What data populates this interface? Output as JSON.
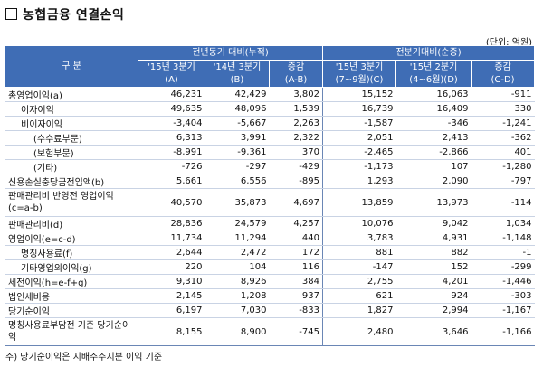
{
  "title": "농협금융 연결손익",
  "unit": "(단위: 억원)",
  "header": {
    "category": "구 분",
    "group_yoy": "전년동기 대비(누적)",
    "group_qoq": "전분기대비(순증)",
    "cols": [
      {
        "l1": "'15년 3분기",
        "l2": "(A)"
      },
      {
        "l1": "'14년 3분기",
        "l2": "(B)"
      },
      {
        "l1": "증감",
        "l2": "(A-B)"
      },
      {
        "l1": "'15년 3분기",
        "l2": "(7~9월)(C)"
      },
      {
        "l1": "'15년 2분기",
        "l2": "(4~6월)(D)"
      },
      {
        "l1": "증감",
        "l2": "(C-D)"
      }
    ]
  },
  "rows": [
    {
      "label": "총영업이익(a)",
      "indent": 0,
      "v": [
        "46,231",
        "42,429",
        "3,802",
        "15,152",
        "16,063",
        "-911"
      ]
    },
    {
      "label": "이자이익",
      "indent": 1,
      "v": [
        "49,635",
        "48,096",
        "1,539",
        "16,739",
        "16,409",
        "330"
      ]
    },
    {
      "label": "비이자이익",
      "indent": 1,
      "v": [
        "-3,404",
        "-5,667",
        "2,263",
        "-1,587",
        "-346",
        "-1,241"
      ]
    },
    {
      "label": "(수수료부문)",
      "indent": 2,
      "v": [
        "6,313",
        "3,991",
        "2,322",
        "2,051",
        "2,413",
        "-362"
      ]
    },
    {
      "label": "(보험부문)",
      "indent": 2,
      "v": [
        "-8,991",
        "-9,361",
        "370",
        "-2,465",
        "-2,866",
        "401"
      ]
    },
    {
      "label": "(기타)",
      "indent": 2,
      "v": [
        "-726",
        "-297",
        "-429",
        "-1,173",
        "107",
        "-1,280"
      ]
    },
    {
      "label": "신용손실충당금전입액(b)",
      "indent": 0,
      "v": [
        "5,661",
        "6,556",
        "-895",
        "1,293",
        "2,090",
        "-797"
      ]
    },
    {
      "label": "판매관리비 반영전 영업이익(c=a-b)",
      "indent": 0,
      "tall": true,
      "v": [
        "40,570",
        "35,873",
        "4,697",
        "13,859",
        "13,973",
        "-114"
      ]
    },
    {
      "label": "판매관리비(d)",
      "indent": 0,
      "v": [
        "28,836",
        "24,579",
        "4,257",
        "10,076",
        "9,042",
        "1,034"
      ]
    },
    {
      "label": "영업이익(e=c-d)",
      "indent": 0,
      "v": [
        "11,734",
        "11,294",
        "440",
        "3,783",
        "4,931",
        "-1,148"
      ]
    },
    {
      "label": "명칭사용료(f)",
      "indent": 1,
      "v": [
        "2,644",
        "2,472",
        "172",
        "881",
        "882",
        "-1"
      ]
    },
    {
      "label": "기타영업외이익(g)",
      "indent": 1,
      "v": [
        "220",
        "104",
        "116",
        "-147",
        "152",
        "-299"
      ]
    },
    {
      "label": "세전이익(h=e-f+g)",
      "indent": 0,
      "v": [
        "9,310",
        "8,926",
        "384",
        "2,755",
        "4,201",
        "-1,446"
      ]
    },
    {
      "label": "법인세비용",
      "indent": 0,
      "v": [
        "2,145",
        "1,208",
        "937",
        "621",
        "924",
        "-303"
      ]
    },
    {
      "label": "당기순이익",
      "indent": 0,
      "v": [
        "6,197",
        "7,030",
        "-833",
        "1,827",
        "2,994",
        "-1,167"
      ]
    },
    {
      "label": "명칭사용료부담전 기준 당기순이익",
      "indent": 0,
      "tall": true,
      "v": [
        "8,155",
        "8,900",
        "-745",
        "2,480",
        "3,646",
        "-1,166"
      ]
    }
  ],
  "note": "주) 당기순이익은 지배주주지분 이익 기준"
}
